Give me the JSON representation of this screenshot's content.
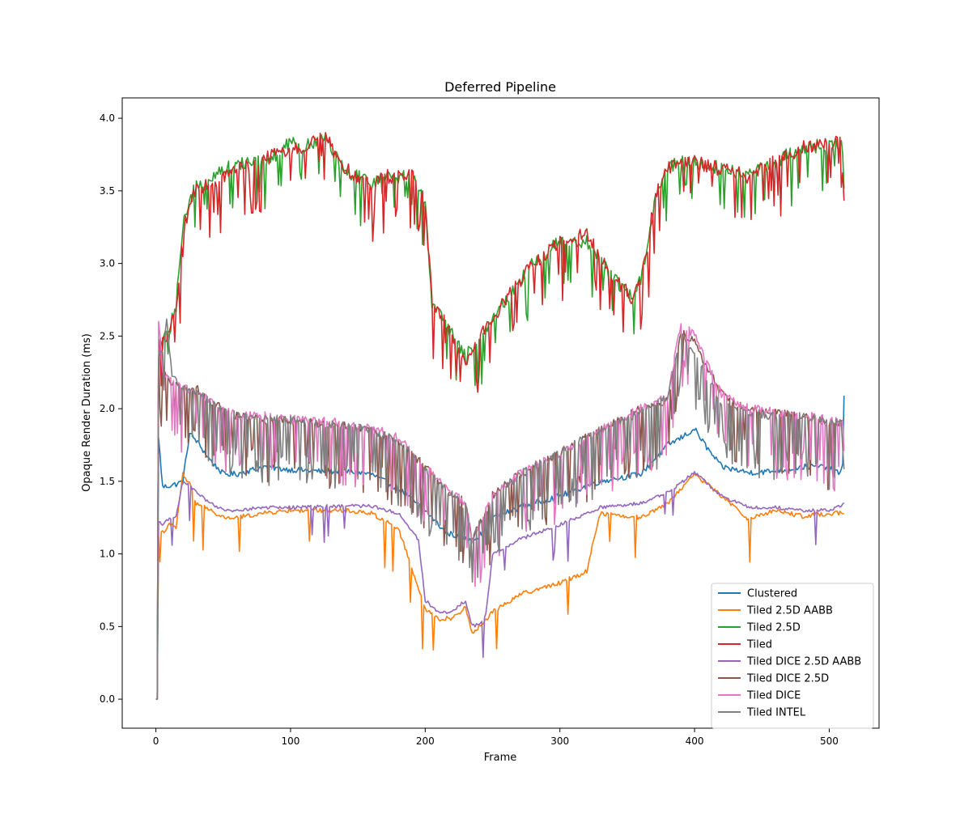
{
  "chart_data": {
    "type": "line",
    "title": "Deferred Pipeline",
    "xlabel": "Frame",
    "ylabel": "Opaque Render Duration (ms)",
    "xlim": [
      -25,
      537
    ],
    "ylim": [
      -0.2,
      4.14
    ],
    "xticks": [
      0,
      100,
      200,
      300,
      400,
      500
    ],
    "xtick_labels": [
      "0",
      "100",
      "200",
      "300",
      "400",
      "500"
    ],
    "yticks": [
      0.0,
      0.5,
      1.0,
      1.5,
      2.0,
      2.5,
      3.0,
      3.5,
      4.0
    ],
    "ytick_labels": [
      "0.0",
      "0.5",
      "1.0",
      "1.5",
      "2.0",
      "2.5",
      "3.0",
      "3.5",
      "4.0"
    ],
    "grid": false,
    "legend_position": "lower-right",
    "series": [
      {
        "name": "Clustered",
        "color": "#1f77b4",
        "noise": 0.02,
        "spike": 0.0,
        "spike_period": 0,
        "x": [
          0,
          1,
          2,
          5,
          10,
          15,
          20,
          25,
          30,
          40,
          50,
          60,
          80,
          100,
          120,
          140,
          160,
          180,
          200,
          215,
          230,
          240,
          250,
          270,
          300,
          330,
          360,
          380,
          390,
          400,
          410,
          420,
          440,
          460,
          480,
          500,
          508,
          510,
          511
        ],
        "y": [
          0.0,
          0.0,
          1.8,
          1.46,
          1.47,
          1.48,
          1.5,
          1.83,
          1.78,
          1.65,
          1.55,
          1.55,
          1.6,
          1.58,
          1.57,
          1.57,
          1.55,
          1.45,
          1.3,
          1.15,
          1.1,
          1.12,
          1.25,
          1.32,
          1.4,
          1.5,
          1.55,
          1.75,
          1.8,
          1.86,
          1.72,
          1.6,
          1.56,
          1.57,
          1.6,
          1.6,
          1.55,
          1.6,
          2.1
        ]
      },
      {
        "name": "Tiled 2.5D AABB",
        "color": "#ff7f0e",
        "noise": 0.015,
        "spike": -0.32,
        "spike_period": 23,
        "x": [
          0,
          1,
          2,
          10,
          15,
          20,
          22,
          25,
          30,
          40,
          50,
          60,
          80,
          100,
          140,
          160,
          180,
          200,
          210,
          220,
          230,
          235,
          240,
          250,
          270,
          300,
          320,
          325,
          330,
          360,
          380,
          400,
          420,
          440,
          460,
          480,
          500,
          510
        ],
        "y": [
          0.0,
          0.0,
          1.12,
          1.2,
          1.18,
          1.55,
          1.52,
          1.48,
          1.35,
          1.3,
          1.25,
          1.25,
          1.28,
          1.3,
          1.3,
          1.28,
          1.18,
          0.62,
          0.55,
          0.56,
          0.63,
          0.45,
          0.5,
          0.6,
          0.72,
          0.8,
          0.88,
          1.1,
          1.28,
          1.25,
          1.35,
          1.55,
          1.4,
          1.24,
          1.3,
          1.26,
          1.28,
          1.28
        ]
      },
      {
        "name": "Tiled 2.5D",
        "color": "#2ca02c",
        "noise": 0.05,
        "spike": -0.3,
        "spike_period": 6,
        "x": [
          0,
          1,
          2,
          5,
          10,
          15,
          20,
          25,
          30,
          40,
          50,
          70,
          90,
          100,
          110,
          120,
          125,
          130,
          140,
          150,
          160,
          170,
          180,
          190,
          195,
          200,
          205,
          215,
          230,
          240,
          260,
          280,
          300,
          320,
          340,
          355,
          360,
          365,
          370,
          375,
          380,
          390,
          400,
          420,
          440,
          460,
          480,
          500,
          511
        ],
        "y": [
          0.0,
          0.0,
          2.45,
          2.45,
          2.55,
          2.7,
          3.25,
          3.4,
          3.55,
          3.6,
          3.65,
          3.7,
          3.75,
          3.85,
          3.8,
          3.85,
          3.9,
          3.8,
          3.65,
          3.6,
          3.55,
          3.6,
          3.6,
          3.6,
          3.55,
          3.4,
          2.7,
          2.6,
          2.35,
          2.5,
          2.75,
          3.0,
          3.15,
          3.15,
          2.9,
          2.75,
          2.9,
          3.1,
          3.4,
          3.55,
          3.65,
          3.7,
          3.7,
          3.65,
          3.6,
          3.7,
          3.8,
          3.82,
          3.8
        ]
      },
      {
        "name": "Tiled",
        "color": "#d62728",
        "noise": 0.05,
        "spike": -0.35,
        "spike_period": 5,
        "x": [
          0,
          1,
          2,
          5,
          10,
          15,
          20,
          25,
          30,
          40,
          50,
          70,
          90,
          100,
          110,
          120,
          125,
          130,
          140,
          150,
          160,
          170,
          180,
          190,
          195,
          200,
          205,
          215,
          230,
          240,
          260,
          280,
          300,
          320,
          340,
          355,
          360,
          365,
          370,
          375,
          380,
          390,
          400,
          420,
          440,
          460,
          480,
          500,
          511
        ],
        "y": [
          0.0,
          0.0,
          2.42,
          2.45,
          2.55,
          2.65,
          3.2,
          3.4,
          3.5,
          3.55,
          3.6,
          3.68,
          3.75,
          3.8,
          3.8,
          3.85,
          3.92,
          3.8,
          3.65,
          3.6,
          3.55,
          3.6,
          3.6,
          3.6,
          3.55,
          3.4,
          2.75,
          2.6,
          2.3,
          2.5,
          2.75,
          3.0,
          3.15,
          3.2,
          2.9,
          2.75,
          2.9,
          3.1,
          3.45,
          3.55,
          3.65,
          3.7,
          3.7,
          3.65,
          3.6,
          3.7,
          3.8,
          3.82,
          3.85
        ]
      },
      {
        "name": "Tiled DICE 2.5D AABB",
        "color": "#9467bd",
        "noise": 0.012,
        "spike": -0.25,
        "spike_period": 37,
        "x": [
          0,
          1,
          2,
          5,
          10,
          15,
          20,
          25,
          30,
          40,
          50,
          60,
          80,
          100,
          140,
          160,
          180,
          195,
          200,
          210,
          220,
          230,
          235,
          240,
          245,
          250,
          270,
          300,
          330,
          360,
          380,
          400,
          420,
          440,
          460,
          480,
          500,
          510
        ],
        "y": [
          0.0,
          0.0,
          1.22,
          1.2,
          1.25,
          1.25,
          1.5,
          1.48,
          1.42,
          1.35,
          1.3,
          1.3,
          1.32,
          1.32,
          1.33,
          1.33,
          1.28,
          1.1,
          0.68,
          0.6,
          0.6,
          0.68,
          0.5,
          0.52,
          0.58,
          1.0,
          1.1,
          1.2,
          1.32,
          1.35,
          1.42,
          1.56,
          1.4,
          1.32,
          1.32,
          1.3,
          1.3,
          1.34
        ]
      },
      {
        "name": "Tiled DICE 2.5D",
        "color": "#8c564b",
        "noise": 0.03,
        "spike": -0.4,
        "spike_period": 4,
        "x": [
          0,
          1,
          2,
          5,
          10,
          20,
          30,
          40,
          50,
          60,
          80,
          100,
          120,
          140,
          160,
          180,
          200,
          215,
          230,
          235,
          240,
          250,
          270,
          300,
          330,
          360,
          380,
          390,
          400,
          420,
          440,
          460,
          480,
          500,
          511
        ],
        "y": [
          0.0,
          0.0,
          2.45,
          2.25,
          2.2,
          2.15,
          2.15,
          2.05,
          2.0,
          1.95,
          1.92,
          1.92,
          1.9,
          1.88,
          1.85,
          1.78,
          1.6,
          1.45,
          1.35,
          1.1,
          1.2,
          1.4,
          1.55,
          1.7,
          1.85,
          2.0,
          2.05,
          2.55,
          2.45,
          2.1,
          2.0,
          1.97,
          1.95,
          1.9,
          1.9
        ]
      },
      {
        "name": "Tiled DICE",
        "color": "#e377c2",
        "noise": 0.03,
        "spike": -0.42,
        "spike_period": 4,
        "x": [
          0,
          1,
          2,
          5,
          10,
          20,
          30,
          40,
          50,
          60,
          80,
          100,
          120,
          140,
          160,
          180,
          200,
          215,
          230,
          235,
          240,
          250,
          270,
          300,
          330,
          360,
          380,
          390,
          400,
          420,
          440,
          460,
          480,
          500,
          511
        ],
        "y": [
          0.0,
          0.0,
          2.6,
          2.25,
          2.2,
          2.15,
          2.12,
          2.05,
          2.0,
          1.95,
          1.95,
          1.93,
          1.92,
          1.9,
          1.87,
          1.8,
          1.6,
          1.45,
          1.35,
          1.1,
          1.2,
          1.4,
          1.55,
          1.7,
          1.85,
          2.0,
          2.1,
          2.6,
          2.5,
          2.1,
          2.0,
          1.98,
          1.96,
          1.92,
          1.9
        ]
      },
      {
        "name": "Tiled INTEL",
        "color": "#7f7f7f",
        "noise": 0.03,
        "spike": -0.4,
        "spike_period": 3,
        "x": [
          0,
          1,
          2,
          5,
          8,
          12,
          20,
          30,
          40,
          50,
          60,
          80,
          100,
          120,
          140,
          160,
          180,
          200,
          215,
          230,
          235,
          240,
          250,
          270,
          300,
          330,
          360,
          380,
          390,
          400,
          410,
          420,
          440,
          460,
          480,
          500,
          511
        ],
        "y": [
          0.0,
          0.0,
          2.35,
          2.4,
          2.6,
          2.25,
          2.15,
          2.12,
          2.05,
          1.98,
          1.95,
          1.93,
          1.92,
          1.9,
          1.88,
          1.85,
          1.78,
          1.58,
          1.45,
          1.32,
          1.08,
          1.2,
          1.38,
          1.55,
          1.7,
          1.85,
          1.98,
          2.08,
          2.5,
          2.4,
          2.2,
          2.05,
          1.98,
          1.95,
          1.95,
          1.9,
          1.9
        ]
      }
    ]
  }
}
